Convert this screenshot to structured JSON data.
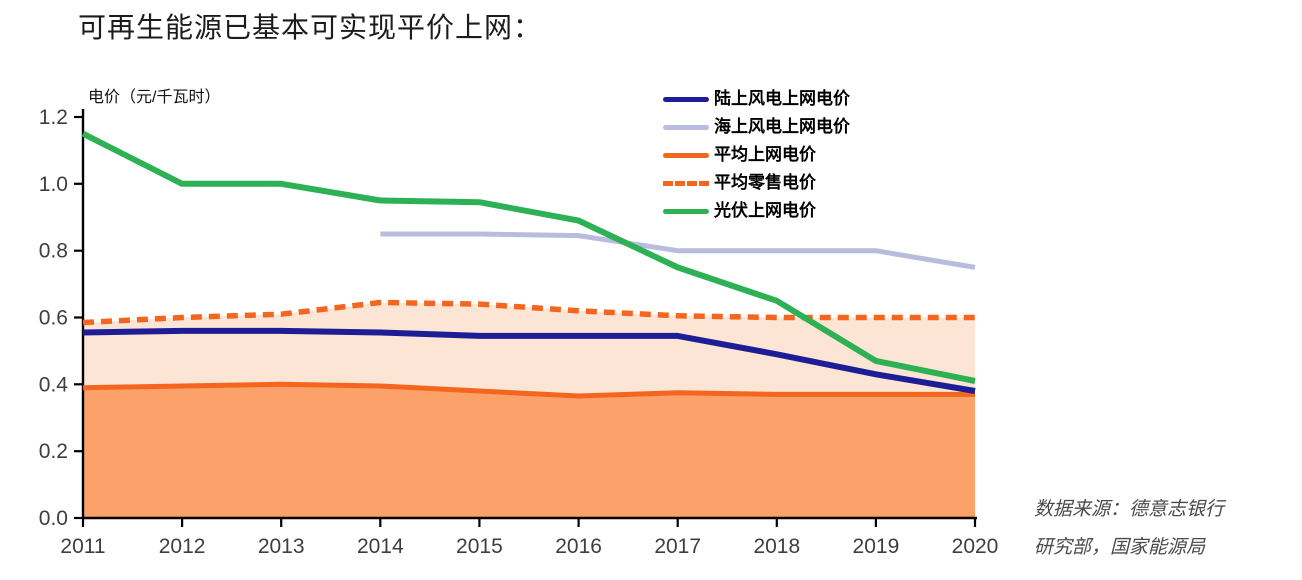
{
  "title": "可再生能源已基本可实现平价上网：",
  "source": {
    "line1": "数据来源：德意志银行",
    "line2": "研究部，国家能源局"
  },
  "colors": {
    "onshore_wind": "#1d1d96",
    "offshore_wind": "#b9bcdf",
    "orange_line": "#f4661f",
    "pv_green": "#2eb054",
    "area_dark": "#fba169",
    "area_pale": "#fce5d4",
    "axis": "#000000",
    "tick_text": "#3e3e3e"
  },
  "chart_data": {
    "type": "line",
    "title": "可再生能源已基本可实现平价上网：",
    "ylabel": "电价（元/千瓦时）",
    "xlabel": "",
    "x": [
      2011,
      2012,
      2013,
      2014,
      2015,
      2016,
      2017,
      2018,
      2019,
      2020
    ],
    "x_ticks": [
      "2011",
      "2012",
      "2013",
      "2014",
      "2015",
      "2016",
      "2017",
      "2018",
      "2019",
      "2020"
    ],
    "y_ticks": [
      "0.0",
      "0.2",
      "0.4",
      "0.6",
      "0.8",
      "1.0",
      "1.2"
    ],
    "ylim": [
      0,
      1.2
    ],
    "grid": false,
    "legend_position": "top-right",
    "series": [
      {
        "key": "onshore-wind",
        "name": "陆上风电上网电价",
        "color": "#1d1d96",
        "style": "solid",
        "width": 6,
        "z": 3,
        "values": [
          0.555,
          0.56,
          0.56,
          0.555,
          0.545,
          0.545,
          0.545,
          0.49,
          0.43,
          0.38
        ]
      },
      {
        "key": "offshore-wind",
        "name": "海上风电上网电价",
        "color": "#b9bcdf",
        "style": "solid",
        "width": 5,
        "z": 4,
        "values": [
          null,
          null,
          null,
          0.85,
          0.85,
          0.845,
          0.8,
          0.8,
          0.8,
          0.75
        ]
      },
      {
        "key": "avg-grid",
        "name": "平均上网电价",
        "color": "#f4661f",
        "style": "solid",
        "width": 5,
        "z": 2,
        "fill": "#fba169",
        "values": [
          0.39,
          0.395,
          0.4,
          0.395,
          0.38,
          0.365,
          0.375,
          0.37,
          0.37,
          0.37
        ]
      },
      {
        "key": "avg-retail",
        "name": "平均零售电价",
        "color": "#f4661f",
        "style": "dashed",
        "width": 5.5,
        "z": 1,
        "fill": "#fce5d4",
        "values": [
          0.585,
          0.6,
          0.61,
          0.645,
          0.64,
          0.62,
          0.605,
          0.6,
          0.6,
          0.6
        ]
      },
      {
        "key": "pv",
        "name": "光伏上网电价",
        "color": "#2eb054",
        "style": "solid",
        "width": 6,
        "z": 5,
        "values": [
          1.15,
          1.0,
          1.0,
          0.95,
          0.945,
          0.89,
          0.75,
          0.65,
          0.47,
          0.41
        ]
      }
    ]
  }
}
